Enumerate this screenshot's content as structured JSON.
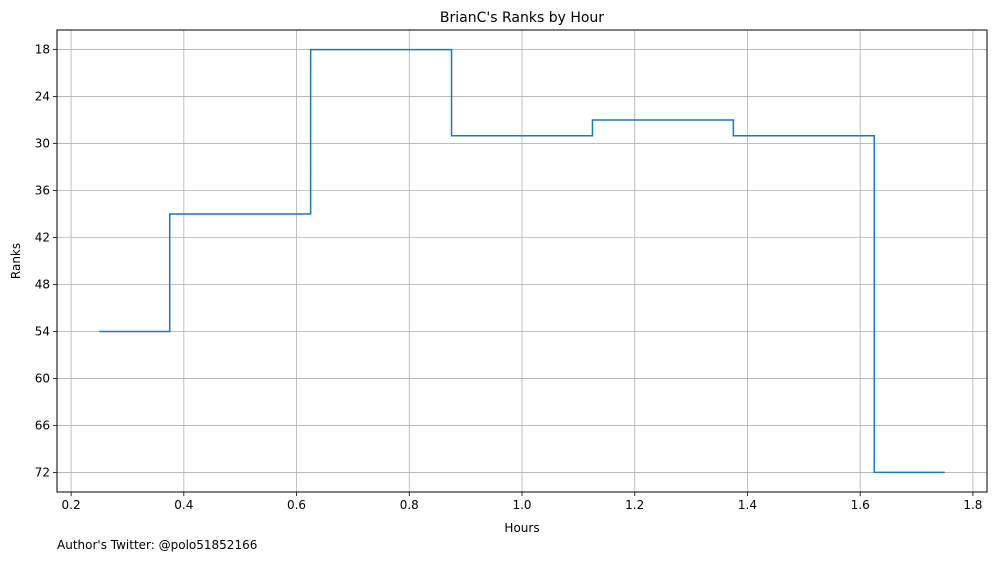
{
  "chart_data": {
    "type": "line",
    "step": "post",
    "title": "BrianC's Ranks by Hour",
    "xlabel": "Hours",
    "ylabel": "Ranks",
    "xlim": [
      0.175,
      1.825
    ],
    "ylim": [
      74.5,
      15.5
    ],
    "y_inverted": true,
    "grid": true,
    "xticks": [
      0.2,
      0.4,
      0.6,
      0.8,
      1.0,
      1.2,
      1.4,
      1.6,
      1.8
    ],
    "xtick_labels": [
      "0.2",
      "0.4",
      "0.6",
      "0.8",
      "1.0",
      "1.2",
      "1.4",
      "1.6",
      "1.8"
    ],
    "yticks": [
      18,
      24,
      30,
      36,
      42,
      48,
      54,
      60,
      66,
      72
    ],
    "ytick_labels": [
      "18",
      "24",
      "30",
      "36",
      "42",
      "48",
      "54",
      "60",
      "66",
      "72"
    ],
    "series": [
      {
        "color": "#1f77b4",
        "x": [
          0.25,
          0.375,
          0.625,
          0.875,
          1.125,
          1.375,
          1.625,
          1.75
        ],
        "y": [
          54,
          39,
          18,
          29,
          27,
          29,
          72,
          72
        ]
      }
    ]
  },
  "footnote": "Author's Twitter: @polo51852166"
}
